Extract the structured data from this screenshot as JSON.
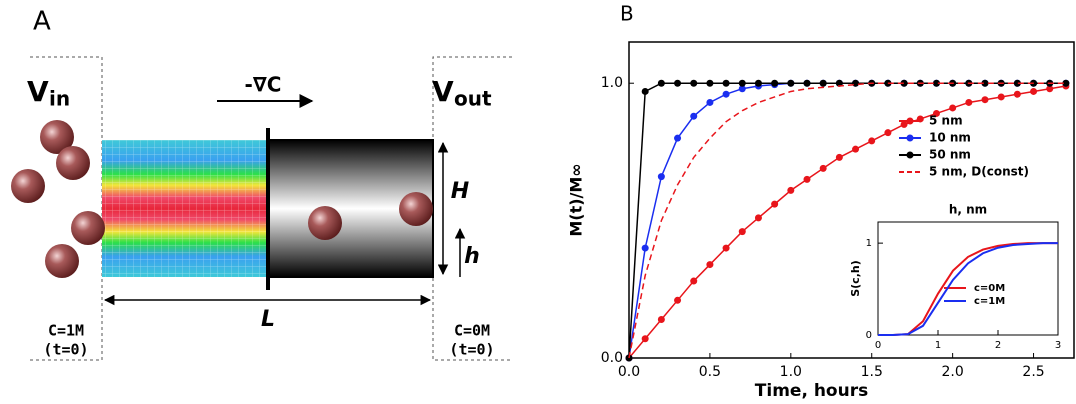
{
  "panel_a": {
    "label": "A",
    "v_in": {
      "symbol": "V",
      "subscript": "in"
    },
    "v_out": {
      "symbol": "V",
      "subscript": "out"
    },
    "gradient": "-∇C",
    "height": "H",
    "h": "h",
    "length": "L",
    "left_conc": "C=1M",
    "left_time": "(t=0)",
    "right_conc": "C=0M",
    "right_time": "(t=0)"
  },
  "panel_b_label": "B",
  "chart_data": [
    {
      "type": "line",
      "xlabel": "Time, hours",
      "ylabel": "M(t)/M∞",
      "x": [
        0,
        0.1,
        0.2,
        0.3,
        0.4,
        0.5,
        0.6,
        0.7,
        0.8,
        0.9,
        1.0,
        1.1,
        1.2,
        1.3,
        1.4,
        1.5,
        1.6,
        1.7,
        1.8,
        1.9,
        2.0,
        2.1,
        2.2,
        2.3,
        2.4,
        2.5,
        2.6,
        2.7
      ],
      "series": [
        {
          "name": "5 nm",
          "color": "#e8151b",
          "markers": true,
          "dashed": false,
          "values": [
            0,
            0.07,
            0.14,
            0.21,
            0.28,
            0.34,
            0.4,
            0.46,
            0.51,
            0.56,
            0.61,
            0.65,
            0.69,
            0.73,
            0.76,
            0.79,
            0.82,
            0.85,
            0.87,
            0.89,
            0.91,
            0.93,
            0.94,
            0.95,
            0.96,
            0.97,
            0.98,
            0.99
          ]
        },
        {
          "name": "10 nm",
          "color": "#1a2ef0",
          "markers": true,
          "dashed": false,
          "values": [
            0,
            0.4,
            0.66,
            0.8,
            0.88,
            0.93,
            0.96,
            0.98,
            0.99,
            0.995,
            1,
            1,
            1,
            1,
            1,
            1,
            1,
            1,
            1,
            1,
            1,
            1,
            1,
            1,
            1,
            1,
            1,
            1
          ]
        },
        {
          "name": "50 nm",
          "color": "#000000",
          "markers": true,
          "dashed": false,
          "values": [
            0,
            0.97,
            1,
            1,
            1,
            1,
            1,
            1,
            1,
            1,
            1,
            1,
            1,
            1,
            1,
            1,
            1,
            1,
            1,
            1,
            1,
            1,
            1,
            1,
            1,
            1,
            1,
            1
          ]
        },
        {
          "name": "5 nm, D(const)",
          "color": "#e8151b",
          "markers": false,
          "dashed": true,
          "values": [
            0,
            0.3,
            0.5,
            0.63,
            0.73,
            0.8,
            0.86,
            0.9,
            0.93,
            0.95,
            0.97,
            0.98,
            0.985,
            0.99,
            0.995,
            1,
            1,
            1,
            1,
            1,
            1,
            1,
            1,
            1,
            1,
            1,
            1,
            1
          ]
        }
      ],
      "xlim": [
        0,
        2.75
      ],
      "ylim": [
        0,
        1.15
      ],
      "xticks": [
        {
          "value": 0,
          "label": "0.0"
        },
        {
          "value": 0.5,
          "label": "0.5"
        },
        {
          "value": 1,
          "label": "1.0"
        },
        {
          "value": 1.5,
          "label": "1.5"
        },
        {
          "value": 2,
          "label": "2.0"
        },
        {
          "value": 2.5,
          "label": "2.5"
        }
      ],
      "yticks": [
        {
          "value": 0,
          "label": "0.0"
        },
        {
          "value": 1,
          "label": "1.0"
        }
      ]
    },
    {
      "type": "line",
      "title": "h, nm",
      "ylabel": "S(c,h)",
      "x": [
        0,
        0.25,
        0.5,
        0.75,
        1,
        1.25,
        1.5,
        1.75,
        2,
        2.25,
        2.5,
        2.75,
        3
      ],
      "series": [
        {
          "name": "c=0M",
          "color": "#e8151b",
          "markers": false,
          "dashed": false,
          "values": [
            0,
            0,
            0.01,
            0.15,
            0.45,
            0.7,
            0.85,
            0.93,
            0.97,
            0.99,
            1,
            1,
            1
          ]
        },
        {
          "name": "c=1M",
          "color": "#1a2ef0",
          "markers": false,
          "dashed": false,
          "values": [
            0,
            0,
            0.01,
            0.1,
            0.35,
            0.6,
            0.78,
            0.89,
            0.95,
            0.98,
            0.99,
            1,
            1
          ]
        }
      ],
      "xlim": [
        0,
        3
      ],
      "ylim": [
        0,
        1.23
      ],
      "xticks": [
        0,
        1,
        2,
        3
      ],
      "yticks": [
        0,
        1
      ]
    }
  ]
}
